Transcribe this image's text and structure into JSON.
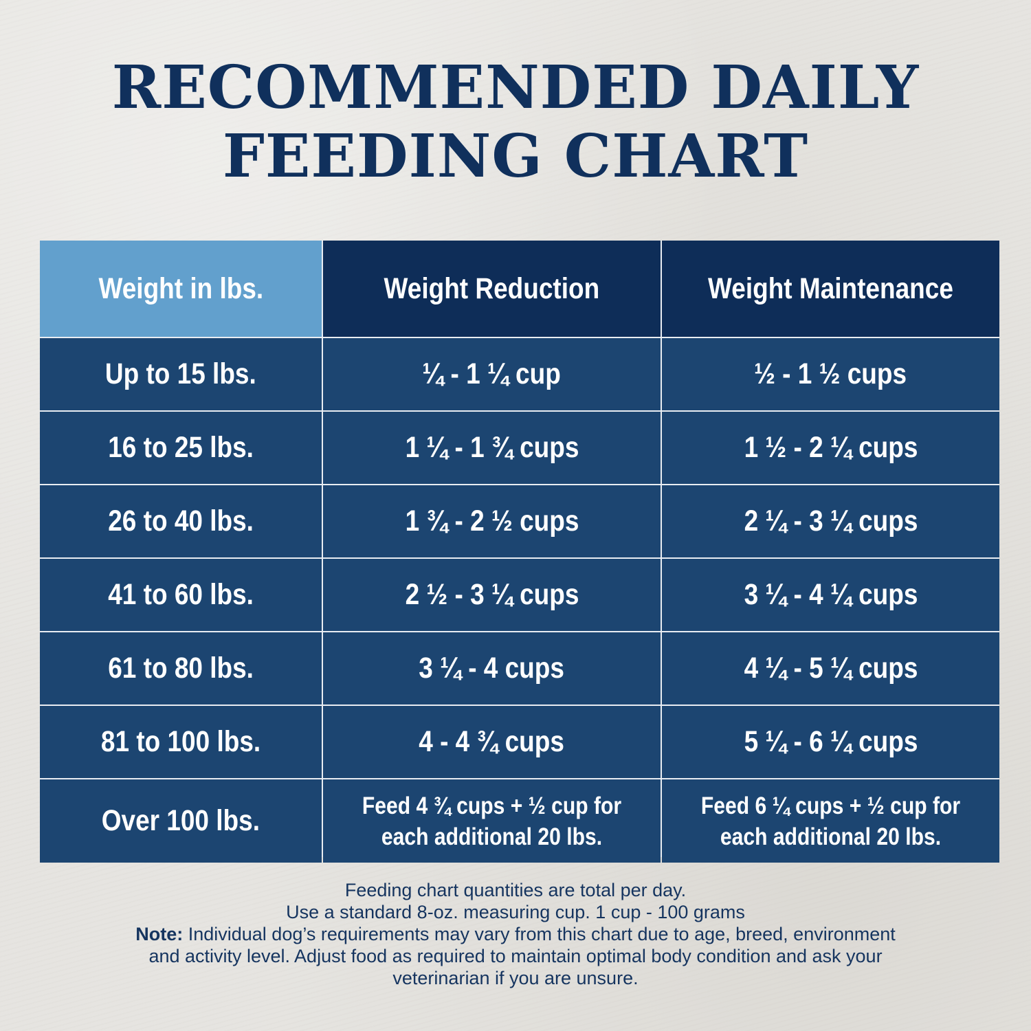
{
  "title": {
    "line1": "RECOMMENDED DAILY",
    "line2": "FEEDING CHART"
  },
  "colors": {
    "title": "#10305c",
    "header_light": "#62a0cd",
    "header_dark": "#0e2d58",
    "cell": "#1c4571",
    "background": "#e6e4e0"
  },
  "chart_data": {
    "type": "table",
    "columns": [
      "Weight in lbs.",
      "Weight Reduction",
      "Weight Maintenance"
    ],
    "rows": [
      [
        "Up to 15 lbs.",
        "¼ - 1 ¼ cup",
        "½ - 1 ½ cups"
      ],
      [
        "16 to 25 lbs.",
        "1 ¼ - 1 ¾ cups",
        "1 ½ - 2 ¼ cups"
      ],
      [
        "26 to 40 lbs.",
        "1 ¾ - 2 ½ cups",
        "2 ¼ - 3 ¼ cups"
      ],
      [
        "41 to 60 lbs.",
        "2 ½ - 3 ¼ cups",
        "3 ¼ - 4 ¼ cups"
      ],
      [
        "61 to 80 lbs.",
        "3 ¼ - 4 cups",
        "4 ¼ - 5 ¼ cups"
      ],
      [
        "81 to 100 lbs.",
        "4 - 4 ¾ cups",
        "5 ¼ - 6 ¼ cups"
      ],
      [
        "Over 100 lbs.",
        "Feed 4 ¾ cups + ½ cup for each additional 20 lbs.",
        "Feed 6 ¼ cups + ½ cup for each additional 20 lbs."
      ]
    ]
  },
  "notes": {
    "line1": "Feeding chart quantities are total per day.",
    "line2": "Use a standard 8-oz. measuring cup. 1 cup - 100 grams",
    "note_label": "Note:",
    "note_text": " Individual dog’s requirements may vary from this chart due to age, breed, environment and activity level. Adjust food as required to maintain optimal body condition and ask your veterinarian if you are unsure."
  }
}
